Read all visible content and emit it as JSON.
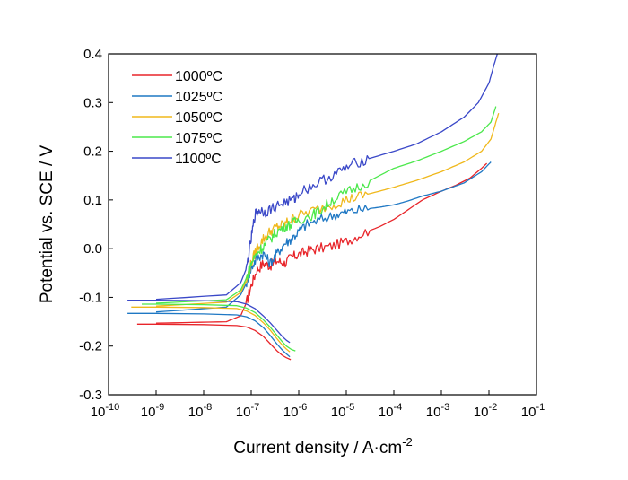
{
  "chart_data": {
    "type": "line",
    "title": "",
    "xlabel": "Current density / A·cm",
    "xlabel_exponent": "-2",
    "ylabel": "Potential vs. SCE / V",
    "x_scale": "log",
    "xlim": [
      1e-10,
      0.1
    ],
    "ylim": [
      -0.3,
      0.4
    ],
    "x_ticks": [
      {
        "mantissa": "10",
        "exponent": "-10"
      },
      {
        "mantissa": "10",
        "exponent": "-9"
      },
      {
        "mantissa": "10",
        "exponent": "-8"
      },
      {
        "mantissa": "10",
        "exponent": "-7"
      },
      {
        "mantissa": "10",
        "exponent": "-6"
      },
      {
        "mantissa": "10",
        "exponent": "-5"
      },
      {
        "mantissa": "10",
        "exponent": "-4"
      },
      {
        "mantissa": "10",
        "exponent": "-3"
      },
      {
        "mantissa": "10",
        "exponent": "-2"
      },
      {
        "mantissa": "10",
        "exponent": "-1"
      }
    ],
    "y_ticks": [
      "-0.3",
      "-0.2",
      "-0.1",
      "0.0",
      "0.1",
      "0.2",
      "0.3",
      "0.4"
    ],
    "grid": false,
    "legend_position": "top-left",
    "series": [
      {
        "name": "1000ºC",
        "color": "#e8252a",
        "cathodic": [
          [
            4e-10,
            -0.155
          ],
          [
            1e-09,
            -0.155
          ],
          [
            1e-08,
            -0.156
          ],
          [
            5e-08,
            -0.158
          ],
          [
            8e-08,
            -0.161
          ],
          [
            1.2e-07,
            -0.168
          ],
          [
            1.8e-07,
            -0.18
          ],
          [
            2.5e-07,
            -0.195
          ],
          [
            3.5e-07,
            -0.21
          ],
          [
            4.5e-07,
            -0.219
          ],
          [
            5.5e-07,
            -0.224
          ],
          [
            6.8e-07,
            -0.228
          ]
        ],
        "anodic": [
          [
            1e-09,
            -0.153
          ],
          [
            3e-08,
            -0.15
          ],
          [
            6e-08,
            -0.138
          ],
          [
            8e-08,
            -0.11
          ],
          [
            1e-07,
            -0.075
          ],
          [
            1.3e-07,
            -0.045
          ],
          [
            1.8e-07,
            -0.03
          ],
          [
            2.5e-07,
            -0.035
          ],
          [
            3.5e-07,
            -0.025
          ],
          [
            5e-07,
            -0.03
          ],
          [
            7e-07,
            -0.018
          ],
          [
            1e-06,
            -0.012
          ],
          [
            1.5e-06,
            -0.005
          ],
          [
            2.5e-06,
            0.0
          ],
          [
            5e-06,
            0.005
          ],
          [
            1e-05,
            0.015
          ],
          [
            2e-05,
            0.03
          ],
          [
            5e-05,
            0.045
          ],
          [
            0.0001,
            0.06
          ],
          [
            0.0002,
            0.08
          ],
          [
            0.0004,
            0.1
          ],
          [
            0.001,
            0.118
          ],
          [
            0.002,
            0.13
          ],
          [
            0.004,
            0.145
          ],
          [
            0.007,
            0.165
          ],
          [
            0.009,
            0.175
          ]
        ]
      },
      {
        "name": "1025ºC",
        "color": "#1f78c4",
        "cathodic": [
          [
            2.5e-10,
            -0.133
          ],
          [
            1e-09,
            -0.133
          ],
          [
            1e-08,
            -0.134
          ],
          [
            5e-08,
            -0.136
          ],
          [
            8e-08,
            -0.14
          ],
          [
            1.2e-07,
            -0.148
          ],
          [
            1.8e-07,
            -0.162
          ],
          [
            2.5e-07,
            -0.178
          ],
          [
            3.5e-07,
            -0.196
          ],
          [
            4.5e-07,
            -0.208
          ],
          [
            5.5e-07,
            -0.216
          ],
          [
            6.5e-07,
            -0.222
          ]
        ],
        "anodic": [
          [
            1e-09,
            -0.13
          ],
          [
            3e-08,
            -0.12
          ],
          [
            6e-08,
            -0.095
          ],
          [
            8e-08,
            -0.07
          ],
          [
            1e-07,
            -0.04
          ],
          [
            1.3e-07,
            -0.02
          ],
          [
            1.8e-07,
            -0.01
          ],
          [
            2.5e-07,
            -0.03
          ],
          [
            3.5e-07,
            -0.01
          ],
          [
            5e-07,
            0.01
          ],
          [
            7e-07,
            0.02
          ],
          [
            1e-06,
            0.035
          ],
          [
            1.5e-06,
            0.05
          ],
          [
            3e-06,
            0.06
          ],
          [
            6e-06,
            0.07
          ],
          [
            1e-05,
            0.075
          ],
          [
            2e-05,
            0.08
          ],
          [
            5e-05,
            0.085
          ],
          [
            0.0001,
            0.09
          ],
          [
            0.0002,
            0.098
          ],
          [
            0.0004,
            0.108
          ],
          [
            0.001,
            0.118
          ],
          [
            0.003,
            0.135
          ],
          [
            0.007,
            0.158
          ],
          [
            0.011,
            0.178
          ]
        ]
      },
      {
        "name": "1050ºC",
        "color": "#f0b81b",
        "cathodic": [
          [
            3e-10,
            -0.12
          ],
          [
            1e-09,
            -0.12
          ],
          [
            1e-08,
            -0.121
          ],
          [
            5e-08,
            -0.123
          ],
          [
            8e-08,
            -0.128
          ],
          [
            1.2e-07,
            -0.137
          ],
          [
            1.8e-07,
            -0.152
          ],
          [
            2.5e-07,
            -0.167
          ],
          [
            3.5e-07,
            -0.185
          ],
          [
            4.5e-07,
            -0.198
          ],
          [
            5.5e-07,
            -0.206
          ],
          [
            6.5e-07,
            -0.212
          ]
        ],
        "anodic": [
          [
            1e-09,
            -0.118
          ],
          [
            3e-08,
            -0.11
          ],
          [
            6e-08,
            -0.09
          ],
          [
            8e-08,
            -0.065
          ],
          [
            1e-07,
            -0.03
          ],
          [
            1.3e-07,
            0.0
          ],
          [
            1.8e-07,
            0.02
          ],
          [
            2.5e-07,
            0.035
          ],
          [
            3.5e-07,
            0.045
          ],
          [
            5e-07,
            0.05
          ],
          [
            7e-07,
            0.06
          ],
          [
            1e-06,
            0.068
          ],
          [
            2e-06,
            0.078
          ],
          [
            5e-06,
            0.09
          ],
          [
            1e-05,
            0.1
          ],
          [
            2e-05,
            0.108
          ],
          [
            5e-05,
            0.118
          ],
          [
            0.0001,
            0.126
          ],
          [
            0.0003,
            0.14
          ],
          [
            0.001,
            0.158
          ],
          [
            0.003,
            0.178
          ],
          [
            0.007,
            0.2
          ],
          [
            0.011,
            0.225
          ],
          [
            0.014,
            0.26
          ],
          [
            0.016,
            0.278
          ]
        ]
      },
      {
        "name": "1075ºC",
        "color": "#4ce84c",
        "cathodic": [
          [
            5e-10,
            -0.114
          ],
          [
            1e-09,
            -0.114
          ],
          [
            1e-08,
            -0.115
          ],
          [
            5e-08,
            -0.117
          ],
          [
            8e-08,
            -0.122
          ],
          [
            1.2e-07,
            -0.131
          ],
          [
            1.8e-07,
            -0.146
          ],
          [
            2.5e-07,
            -0.161
          ],
          [
            3.5e-07,
            -0.178
          ],
          [
            4.5e-07,
            -0.191
          ],
          [
            5.5e-07,
            -0.2
          ],
          [
            7e-07,
            -0.207
          ],
          [
            8.5e-07,
            -0.21
          ]
        ],
        "anodic": [
          [
            1e-09,
            -0.112
          ],
          [
            3e-08,
            -0.105
          ],
          [
            6e-08,
            -0.085
          ],
          [
            8e-08,
            -0.06
          ],
          [
            1e-07,
            -0.03
          ],
          [
            1.3e-07,
            -0.01
          ],
          [
            1.8e-07,
            0.005
          ],
          [
            2.5e-07,
            0.02
          ],
          [
            3.5e-07,
            0.035
          ],
          [
            5e-07,
            0.045
          ],
          [
            7e-07,
            0.05
          ],
          [
            1e-06,
            0.06
          ],
          [
            2e-06,
            0.07
          ],
          [
            3e-06,
            0.08
          ],
          [
            5e-06,
            0.1
          ],
          [
            1e-05,
            0.115
          ],
          [
            2e-05,
            0.13
          ],
          [
            5e-05,
            0.15
          ],
          [
            0.0001,
            0.165
          ],
          [
            0.0003,
            0.18
          ],
          [
            0.001,
            0.2
          ],
          [
            0.003,
            0.22
          ],
          [
            0.007,
            0.24
          ],
          [
            0.011,
            0.26
          ],
          [
            0.014,
            0.292
          ]
        ]
      },
      {
        "name": "1100ºC",
        "color": "#3a48c8",
        "cathodic": [
          [
            2.5e-10,
            -0.106
          ],
          [
            1e-09,
            -0.106
          ],
          [
            1e-08,
            -0.107
          ],
          [
            5e-08,
            -0.109
          ],
          [
            8e-08,
            -0.114
          ],
          [
            1.2e-07,
            -0.123
          ],
          [
            1.8e-07,
            -0.138
          ],
          [
            2.5e-07,
            -0.152
          ],
          [
            3.5e-07,
            -0.168
          ],
          [
            4.5e-07,
            -0.18
          ],
          [
            5.5e-07,
            -0.188
          ],
          [
            6.5e-07,
            -0.193
          ]
        ],
        "anodic": [
          [
            1e-09,
            -0.104
          ],
          [
            3e-08,
            -0.095
          ],
          [
            6e-08,
            -0.07
          ],
          [
            8e-08,
            -0.04
          ],
          [
            1e-07,
            0.02
          ],
          [
            1.2e-07,
            0.07
          ],
          [
            1.5e-07,
            0.08
          ],
          [
            2e-07,
            0.075
          ],
          [
            3e-07,
            0.085
          ],
          [
            5e-07,
            0.095
          ],
          [
            8e-07,
            0.1
          ],
          [
            1e-06,
            0.115
          ],
          [
            2e-06,
            0.13
          ],
          [
            4e-06,
            0.145
          ],
          [
            8e-06,
            0.16
          ],
          [
            1.5e-05,
            0.175
          ],
          [
            3e-05,
            0.185
          ],
          [
            0.0001,
            0.2
          ],
          [
            0.0003,
            0.215
          ],
          [
            0.001,
            0.24
          ],
          [
            0.003,
            0.27
          ],
          [
            0.006,
            0.3
          ],
          [
            0.01,
            0.34
          ],
          [
            0.013,
            0.38
          ],
          [
            0.015,
            0.4
          ]
        ]
      }
    ]
  }
}
